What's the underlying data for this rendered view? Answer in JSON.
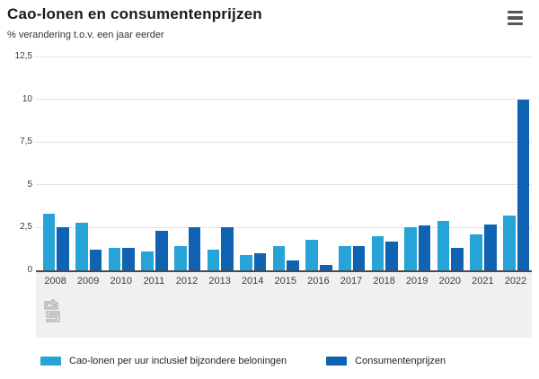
{
  "header": {
    "title": "Cao-lonen en consumentenprijzen",
    "subtitle": "% verandering t.o.v. een jaar eerder"
  },
  "icons": {
    "menu": "hamburger-menu-icon",
    "source_logo": "cbs-logo"
  },
  "chart_data": {
    "type": "bar",
    "title": "Cao-lonen en consumentenprijzen",
    "subtitle": "% verandering t.o.v. een jaar eerder",
    "categories": [
      "2008",
      "2009",
      "2010",
      "2011",
      "2012",
      "2013",
      "2014",
      "2015",
      "2016",
      "2017",
      "2018",
      "2019",
      "2020",
      "2021",
      "2022"
    ],
    "series": [
      {
        "name": "Cao-lonen per uur inclusief bijzondere beloningen",
        "color": "#27a4d7",
        "values": [
          3.3,
          2.8,
          1.3,
          1.1,
          1.4,
          1.2,
          0.9,
          1.4,
          1.8,
          1.4,
          2.0,
          2.5,
          2.9,
          2.1,
          3.2
        ]
      },
      {
        "name": "Consumentenprijzen",
        "color": "#0f63b2",
        "values": [
          2.5,
          1.2,
          1.3,
          2.3,
          2.5,
          2.5,
          1.0,
          0.6,
          0.3,
          1.4,
          1.7,
          2.6,
          1.3,
          2.7,
          10.0
        ]
      }
    ],
    "xlabel": "",
    "ylabel": "% verandering t.o.v. een jaar eerder",
    "ylim": [
      0,
      12.5
    ],
    "yticks": [
      0,
      2.5,
      5,
      7.5,
      10,
      12.5
    ],
    "ytick_labels": [
      "0",
      "2,5",
      "5",
      "7,5",
      "10",
      "12,5"
    ],
    "grid": true,
    "legend_position": "bottom"
  },
  "style": {
    "gridline_color": "#e3e3e3",
    "baseline_color": "#4b4b4b",
    "axis_band_color": "#f0f0ee",
    "light_blue": "#27a4d7",
    "dark_blue": "#0f63b2"
  }
}
